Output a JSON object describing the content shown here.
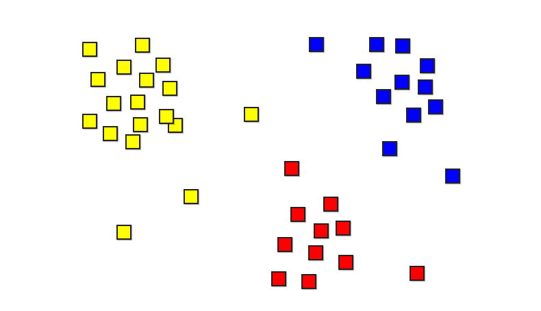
{
  "clusters": [
    {
      "name": "yellow",
      "color": "#ffff00"
    },
    {
      "name": "blue",
      "color": "#0000ff"
    },
    {
      "name": "red",
      "color": "#ff0000"
    }
  ],
  "border_color": "#222222"
}
